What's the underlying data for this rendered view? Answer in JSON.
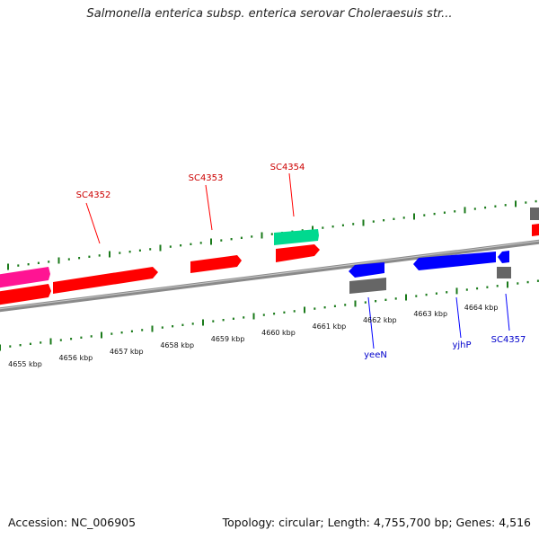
{
  "title": "Salmonella enterica subsp. enterica serovar Choleraesuis str...",
  "footer": {
    "accession": "Accession: NC_006905",
    "summary": "Topology: circular; Length: 4,755,700 bp; Genes: 4,516"
  },
  "colors": {
    "forward": "#ff0000",
    "reverse": "#0000ff",
    "pink": "#ff1493",
    "teal": "#00d98f",
    "gray": "#666666",
    "tick": "#1a7a1a",
    "backbone": "#8a8a8a"
  },
  "scale": {
    "labels": [
      "4655 kbp",
      "4656 kbp",
      "4657 kbp",
      "4658 kbp",
      "4659 kbp",
      "4660 kbp",
      "4661 kbp",
      "4662 kbp",
      "4663 kbp",
      "4664 kbp"
    ],
    "start_kbp": 4655
  },
  "gene_labels": {
    "sc4352": "SC4352",
    "sc4353": "SC4353",
    "sc4354": "SC4354",
    "yeeN": "yeeN",
    "yjhP": "yjhP",
    "sc4357": "SC4357"
  }
}
